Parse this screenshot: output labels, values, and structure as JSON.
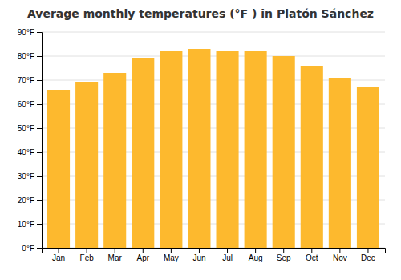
{
  "chart_data": {
    "type": "bar",
    "title": "Average monthly temperatures (°F ) in Platón Sánchez",
    "categories": [
      "Jan",
      "Feb",
      "Mar",
      "Apr",
      "May",
      "Jun",
      "Jul",
      "Aug",
      "Sep",
      "Oct",
      "Nov",
      "Dec"
    ],
    "values": [
      66,
      69,
      73,
      79,
      82,
      83,
      82,
      82,
      80,
      76,
      71,
      67
    ],
    "color": "#FDB92E",
    "ylim": [
      0,
      90
    ],
    "yticks": [
      {
        "value": 0,
        "label": "0°F"
      },
      {
        "value": 10,
        "label": "10°F"
      },
      {
        "value": 20,
        "label": "20°F"
      },
      {
        "value": 30,
        "label": "30°F"
      },
      {
        "value": 40,
        "label": "40°F"
      },
      {
        "value": 50,
        "label": "50°F"
      },
      {
        "value": 60,
        "label": "60°F"
      },
      {
        "value": 70,
        "label": "70°F"
      },
      {
        "value": 80,
        "label": "80°F"
      },
      {
        "value": 90,
        "label": "90°F"
      }
    ],
    "grid": true
  }
}
